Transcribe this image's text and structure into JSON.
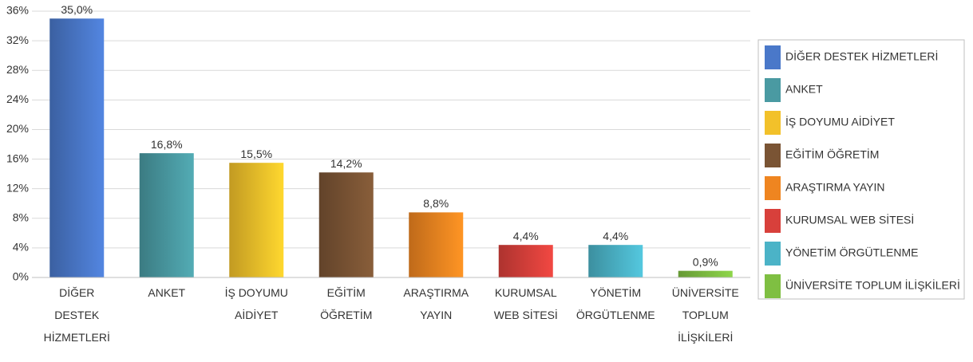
{
  "chart_data": {
    "type": "bar",
    "categories": [
      [
        "DİĞER",
        "DESTEK",
        "HİZMETLERİ"
      ],
      [
        "ANKET"
      ],
      [
        "İŞ DOYUMU",
        "AİDİYET"
      ],
      [
        "EĞİTİM",
        "ÖĞRETİM"
      ],
      [
        "ARAŞTIRMA",
        "YAYIN"
      ],
      [
        "KURUMSAL",
        "WEB SİTESİ"
      ],
      [
        "YÖNETİM",
        "ÖRGÜTLENME"
      ],
      [
        "ÜNİVERSİTE",
        "TOPLUM",
        "İLİŞKİLERİ"
      ]
    ],
    "values": [
      35.0,
      16.8,
      15.5,
      14.2,
      8.8,
      4.4,
      4.4,
      0.9
    ],
    "value_labels": [
      "35,0%",
      "16,8%",
      "15,5%",
      "14,2%",
      "8,8%",
      "4,4%",
      "4,4%",
      "0,9%"
    ],
    "colors": [
      "#4a78c9",
      "#4a9aa2",
      "#f2c12a",
      "#7a5434",
      "#ef8520",
      "#d8403b",
      "#4bb3c7",
      "#7fbf42"
    ],
    "legend": [
      "DİĞER DESTEK HİZMETLERİ",
      "ANKET",
      "İŞ DOYUMU AİDİYET",
      "EĞİTİM  ÖĞRETİM",
      "ARAŞTIRMA  YAYIN",
      "KURUMSAL WEB SİTESİ",
      "YÖNETİM ÖRGÜTLENME",
      "ÜNİVERSİTE TOPLUM İLİŞKİLERİ"
    ],
    "legend_position": "right",
    "ylim": [
      0,
      36
    ],
    "yticks": [
      {
        "value": 0,
        "label": "0%"
      },
      {
        "value": 4,
        "label": "4%"
      },
      {
        "value": 8,
        "label": "8%"
      },
      {
        "value": 12,
        "label": "12%"
      },
      {
        "value": 16,
        "label": "16%"
      },
      {
        "value": 20,
        "label": "20%"
      },
      {
        "value": 24,
        "label": "24%"
      },
      {
        "value": 28,
        "label": "28%"
      },
      {
        "value": 32,
        "label": "32%"
      },
      {
        "value": 36,
        "label": "36%"
      }
    ],
    "grid": true
  }
}
